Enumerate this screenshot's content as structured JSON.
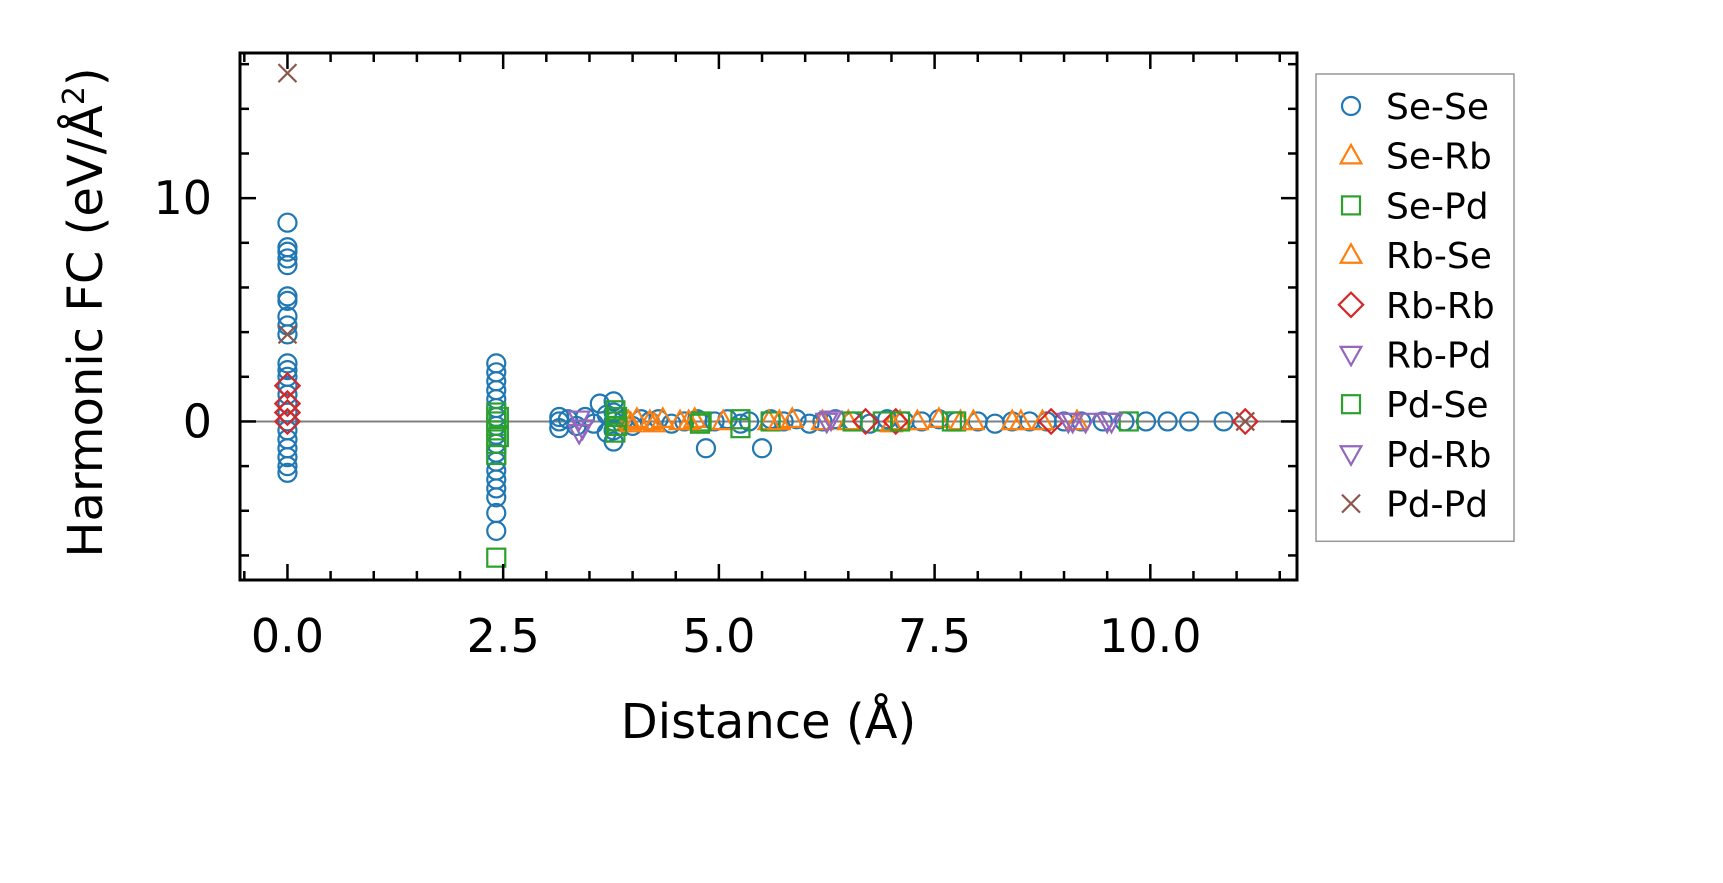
{
  "chart_data": {
    "type": "scatter",
    "title": "",
    "xlabel": "Distance (Å)",
    "ylabel_main": "Harmonic FC (eV/Å",
    "ylabel_sup": "2",
    "ylabel_close": ")",
    "xlim": [
      -0.55,
      11.7
    ],
    "ylim": [
      -7.1,
      16.5
    ],
    "xticks": [
      0.0,
      2.5,
      5.0,
      7.5,
      10.0
    ],
    "xtick_labels": [
      "0.0",
      "2.5",
      "5.0",
      "7.5",
      "10.0"
    ],
    "yticks": [
      0,
      10
    ],
    "ytick_labels": [
      "0",
      "10"
    ],
    "zero_line": true,
    "grid": false,
    "legend_position": "right, outside plot",
    "series": [
      {
        "name": "Se-Se",
        "marker": "circle",
        "color": "#1f77b4",
        "points": [
          [
            0.0,
            8.9
          ],
          [
            0.0,
            7.8
          ],
          [
            0.0,
            7.6
          ],
          [
            0.0,
            7.3
          ],
          [
            0.0,
            7.0
          ],
          [
            0.0,
            5.6
          ],
          [
            0.0,
            5.4
          ],
          [
            0.0,
            4.7
          ],
          [
            0.0,
            4.3
          ],
          [
            0.0,
            3.9
          ],
          [
            0.0,
            2.6
          ],
          [
            0.0,
            2.3
          ],
          [
            0.0,
            2.0
          ],
          [
            0.0,
            1.6
          ],
          [
            0.0,
            1.2
          ],
          [
            0.0,
            0.8
          ],
          [
            0.0,
            0.4
          ],
          [
            0.0,
            0.0
          ],
          [
            0.0,
            -0.4
          ],
          [
            0.0,
            -0.8
          ],
          [
            0.0,
            -1.2
          ],
          [
            0.0,
            -1.6
          ],
          [
            0.0,
            -2.0
          ],
          [
            0.0,
            -2.3
          ],
          [
            2.42,
            2.6
          ],
          [
            2.42,
            2.2
          ],
          [
            2.42,
            1.8
          ],
          [
            2.42,
            1.4
          ],
          [
            2.42,
            1.0
          ],
          [
            2.42,
            0.6
          ],
          [
            2.42,
            0.2
          ],
          [
            2.42,
            -0.2
          ],
          [
            2.42,
            -0.6
          ],
          [
            2.42,
            -1.0
          ],
          [
            2.42,
            -1.4
          ],
          [
            2.42,
            -1.8
          ],
          [
            2.42,
            -2.2
          ],
          [
            2.42,
            -2.6
          ],
          [
            2.42,
            -3.0
          ],
          [
            2.42,
            -3.4
          ],
          [
            2.42,
            -4.1
          ],
          [
            2.42,
            -4.9
          ],
          [
            3.15,
            0.2
          ],
          [
            3.15,
            0.0
          ],
          [
            3.15,
            -0.3
          ],
          [
            3.25,
            0.1
          ],
          [
            3.35,
            -0.2
          ],
          [
            3.45,
            0.2
          ],
          [
            3.55,
            -0.1
          ],
          [
            3.62,
            0.8
          ],
          [
            3.7,
            0.3
          ],
          [
            3.7,
            -0.5
          ],
          [
            3.78,
            0.9
          ],
          [
            3.78,
            0.4
          ],
          [
            3.78,
            0.0
          ],
          [
            3.78,
            -0.4
          ],
          [
            3.78,
            -0.9
          ],
          [
            3.9,
            0.1
          ],
          [
            4.0,
            -0.2
          ],
          [
            4.1,
            0.1
          ],
          [
            4.2,
            0.0
          ],
          [
            4.3,
            0.1
          ],
          [
            4.45,
            -0.1
          ],
          [
            4.6,
            0.0
          ],
          [
            4.75,
            0.1
          ],
          [
            4.85,
            -1.2
          ],
          [
            4.95,
            0.0
          ],
          [
            5.1,
            0.1
          ],
          [
            5.25,
            -0.1
          ],
          [
            5.35,
            0.0
          ],
          [
            5.5,
            -1.2
          ],
          [
            5.6,
            0.1
          ],
          [
            5.75,
            0.0
          ],
          [
            5.9,
            0.1
          ],
          [
            6.05,
            -0.1
          ],
          [
            6.2,
            0.0
          ],
          [
            6.35,
            0.1
          ],
          [
            6.55,
            0.0
          ],
          [
            6.75,
            -0.1
          ],
          [
            6.95,
            0.1
          ],
          [
            7.15,
            0.0
          ],
          [
            7.35,
            0.0
          ],
          [
            7.55,
            0.1
          ],
          [
            7.75,
            0.0
          ],
          [
            8.0,
            0.0
          ],
          [
            8.2,
            -0.1
          ],
          [
            8.4,
            0.0
          ],
          [
            8.6,
            0.0
          ],
          [
            8.8,
            0.0
          ],
          [
            9.0,
            0.0
          ],
          [
            9.2,
            0.0
          ],
          [
            9.45,
            0.0
          ],
          [
            9.7,
            0.0
          ],
          [
            9.95,
            0.0
          ],
          [
            10.2,
            0.0
          ],
          [
            10.45,
            0.0
          ],
          [
            10.85,
            0.0
          ]
        ]
      },
      {
        "name": "Se-Rb",
        "marker": "triangle-up",
        "color": "#ff7f0e",
        "points": [
          [
            3.95,
            0.0
          ],
          [
            4.05,
            0.1
          ],
          [
            4.2,
            0.0
          ],
          [
            4.35,
            0.1
          ],
          [
            4.55,
            0.0
          ],
          [
            4.72,
            0.1
          ],
          [
            5.05,
            0.0
          ],
          [
            5.58,
            0.0
          ],
          [
            5.85,
            0.1
          ],
          [
            6.5,
            0.0
          ],
          [
            7.1,
            0.0
          ],
          [
            7.3,
            0.0
          ],
          [
            7.55,
            0.1
          ],
          [
            7.8,
            0.0
          ],
          [
            8.4,
            0.0
          ],
          [
            8.75,
            0.0
          ],
          [
            9.15,
            0.0
          ]
        ]
      },
      {
        "name": "Se-Pd",
        "marker": "square",
        "color": "#2ca02c",
        "points": [
          [
            2.42,
            0.4
          ],
          [
            2.42,
            0.0
          ],
          [
            2.42,
            -0.4
          ],
          [
            2.42,
            -1.0
          ],
          [
            2.42,
            -1.5
          ],
          [
            2.42,
            -6.1
          ],
          [
            3.8,
            0.5
          ],
          [
            3.8,
            0.0
          ],
          [
            3.8,
            -0.5
          ],
          [
            4.8,
            0.0
          ],
          [
            5.25,
            0.1
          ],
          [
            5.25,
            -0.3
          ],
          [
            5.6,
            0.0
          ],
          [
            6.9,
            0.0
          ],
          [
            7.75,
            0.0
          ],
          [
            9.75,
            0.0
          ]
        ]
      },
      {
        "name": "Rb-Se",
        "marker": "triangle-up",
        "color": "#ff7f0e",
        "points": [
          [
            3.98,
            -0.1
          ],
          [
            4.25,
            -0.1
          ],
          [
            4.65,
            0.0
          ],
          [
            5.7,
            0.0
          ],
          [
            6.2,
            0.0
          ],
          [
            7.0,
            -0.1
          ],
          [
            7.95,
            0.0
          ],
          [
            8.5,
            0.0
          ]
        ]
      },
      {
        "name": "Rb-Rb",
        "marker": "diamond",
        "color": "#d62728",
        "points": [
          [
            0.0,
            1.6
          ],
          [
            0.0,
            0.8
          ],
          [
            0.0,
            0.4
          ],
          [
            0.0,
            0.0
          ],
          [
            6.7,
            0.0
          ],
          [
            7.05,
            0.0
          ],
          [
            8.85,
            0.0
          ],
          [
            11.1,
            0.0
          ]
        ]
      },
      {
        "name": "Rb-Pd",
        "marker": "triangle-down",
        "color": "#9467bd",
        "points": [
          [
            3.38,
            0.1
          ],
          [
            3.38,
            -0.5
          ],
          [
            6.25,
            0.0
          ],
          [
            9.05,
            0.0
          ],
          [
            9.25,
            0.0
          ],
          [
            9.5,
            0.0
          ]
        ]
      },
      {
        "name": "Pd-Se",
        "marker": "square",
        "color": "#2ca02c",
        "points": [
          [
            2.45,
            0.2
          ],
          [
            2.45,
            -0.7
          ],
          [
            3.82,
            0.2
          ],
          [
            3.82,
            -0.2
          ],
          [
            4.78,
            -0.1
          ],
          [
            6.55,
            0.0
          ],
          [
            7.1,
            0.0
          ],
          [
            7.7,
            0.0
          ]
        ]
      },
      {
        "name": "Pd-Rb",
        "marker": "triangle-down",
        "color": "#9467bd",
        "points": [
          [
            3.42,
            -0.3
          ],
          [
            6.3,
            0.1
          ],
          [
            9.1,
            0.0
          ],
          [
            9.55,
            0.0
          ]
        ]
      },
      {
        "name": "Pd-Pd",
        "marker": "x",
        "color": "#8c564b",
        "points": [
          [
            0.0,
            15.6
          ],
          [
            0.0,
            3.9
          ],
          [
            11.1,
            0.0
          ]
        ]
      }
    ]
  }
}
